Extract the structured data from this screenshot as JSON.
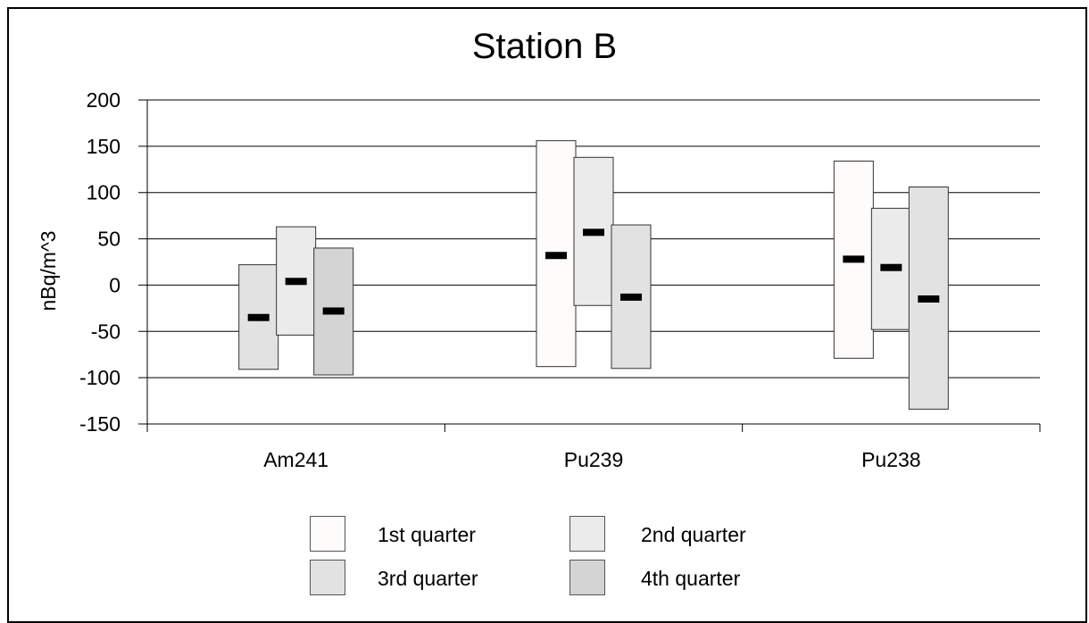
{
  "chart_data": {
    "type": "bar",
    "subtype": "floating-range",
    "title": "Station B",
    "ylabel": "nBq/m^3",
    "xlabel": "",
    "ylim": [
      -150,
      200
    ],
    "yticks": [
      200,
      150,
      100,
      50,
      0,
      -50,
      -100,
      -150
    ],
    "grid": true,
    "legend_position": "bottom",
    "categories": [
      "Am241",
      "Pu239",
      "Pu238"
    ],
    "series": [
      {
        "name": "1st quarter",
        "color": "#fdfcfa",
        "ranges": [
          null,
          {
            "low": -88,
            "high": 156,
            "mid": 32
          },
          {
            "low": -79,
            "high": 134,
            "mid": 28
          }
        ]
      },
      {
        "name": "2nd quarter",
        "color": "#ebebeb",
        "ranges": [
          {
            "low": -54,
            "high": 63,
            "mid": 4
          },
          {
            "low": -22,
            "high": 138,
            "mid": 57
          },
          {
            "low": -48,
            "high": 83,
            "mid": 19
          }
        ]
      },
      {
        "name": "3rd quarter",
        "color": "#e2e2e2",
        "ranges": [
          {
            "low": -91,
            "high": 22,
            "mid": -35
          },
          {
            "low": -90,
            "high": 65,
            "mid": -13
          },
          {
            "low": -134,
            "high": 106,
            "mid": -15
          }
        ]
      },
      {
        "name": "4th quarter",
        "color": "#d4d4d4",
        "ranges": [
          {
            "low": -97,
            "high": 40,
            "mid": -28
          },
          null,
          null
        ]
      }
    ],
    "category_series_order": [
      [
        "3rd quarter",
        "2nd quarter",
        "4th quarter"
      ],
      [
        "1st quarter",
        "2nd quarter",
        "3rd quarter"
      ],
      [
        "1st quarter",
        "2nd quarter",
        "3rd quarter"
      ]
    ]
  }
}
